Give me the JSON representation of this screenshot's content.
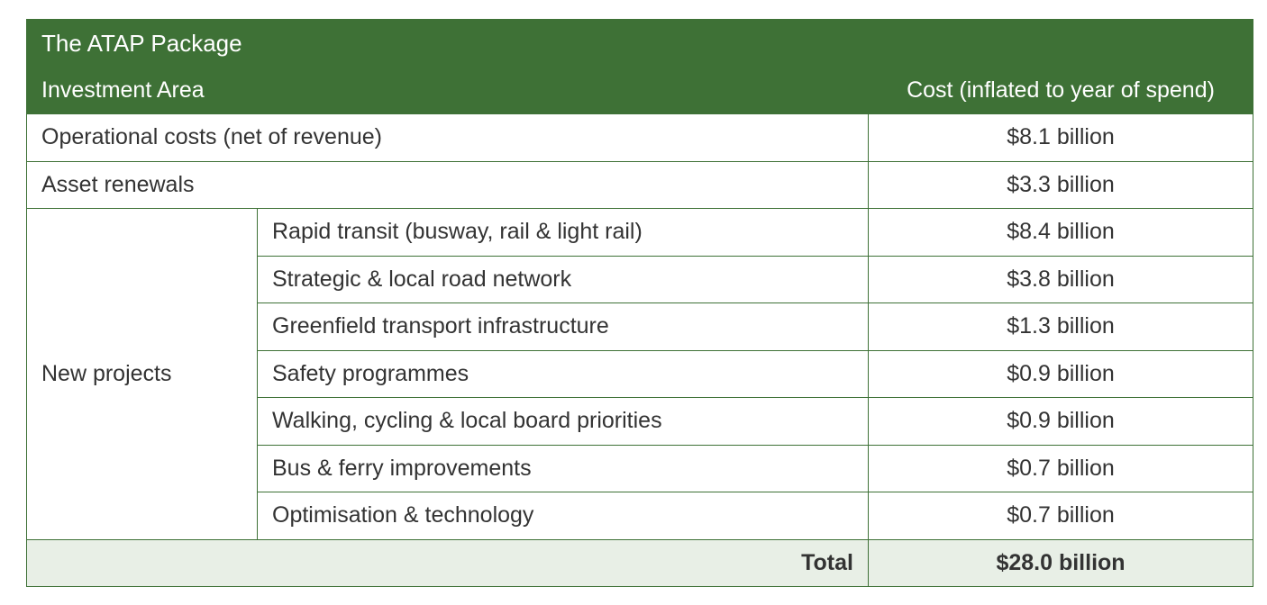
{
  "table": {
    "title": "The ATAP Package",
    "headers": {
      "area": "Investment Area",
      "cost": "Cost (inflated to year of spend)"
    },
    "rows": [
      {
        "area": "Operational costs (net of revenue)",
        "cost": "$8.1 billion"
      },
      {
        "area": "Asset renewals",
        "cost": "$3.3 billion"
      }
    ],
    "group": {
      "label": "New projects",
      "items": [
        {
          "name": "Rapid transit (busway, rail & light rail)",
          "cost": "$8.4 billion"
        },
        {
          "name": "Strategic & local road network",
          "cost": "$3.8 billion"
        },
        {
          "name": "Greenfield transport infrastructure",
          "cost": "$1.3 billion"
        },
        {
          "name": "Safety programmes",
          "cost": "$0.9 billion"
        },
        {
          "name": "Walking, cycling & local board priorities",
          "cost": "$0.9 billion"
        },
        {
          "name": "Bus & ferry improvements",
          "cost": "$0.7 billion"
        },
        {
          "name": "Optimisation & technology",
          "cost": "$0.7 billion"
        }
      ]
    },
    "total": {
      "label": "Total",
      "value": "$28.0 billion"
    }
  }
}
